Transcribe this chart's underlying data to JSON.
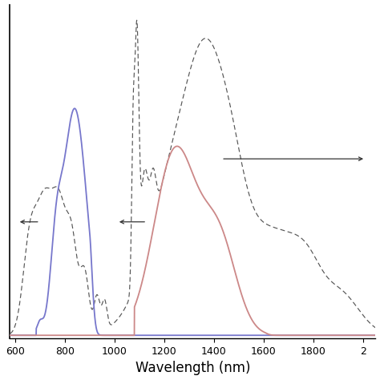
{
  "xlim": [
    580,
    2020
  ],
  "xlabel": "Wavelength (nm)",
  "xlabel_fontsize": 12,
  "background_color": "#ffffff",
  "blue_color": "#7777cc",
  "red_color": "#cc8888",
  "dashed_color": "#555555",
  "arrow_color": "#333333",
  "tick_fontsize": 9
}
